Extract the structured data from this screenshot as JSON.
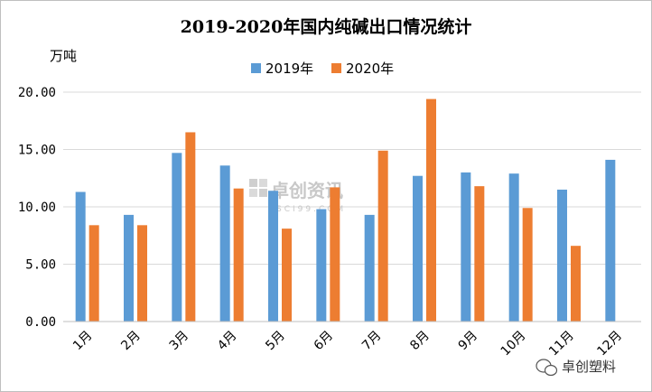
{
  "chart_data": {
    "type": "bar",
    "title": "2019-2020年国内纯碱出口情况统计",
    "ylabel": "万吨",
    "xlabel": "",
    "categories": [
      "1月",
      "2月",
      "3月",
      "4月",
      "5月",
      "6月",
      "7月",
      "8月",
      "9月",
      "10月",
      "11月",
      "12月"
    ],
    "series": [
      {
        "name": "2019年",
        "color": "#5b9bd5",
        "values": [
          11.3,
          9.3,
          14.7,
          13.6,
          11.4,
          9.8,
          9.3,
          12.7,
          13.0,
          12.9,
          11.5,
          14.1
        ]
      },
      {
        "name": "2020年",
        "color": "#ed7d31",
        "values": [
          8.4,
          8.4,
          16.5,
          11.6,
          8.1,
          11.7,
          14.9,
          19.4,
          11.8,
          9.9,
          6.6,
          null
        ]
      }
    ],
    "ylim": [
      0,
      20
    ],
    "yticks": [
      "0.00",
      "5.00",
      "10.00",
      "15.00",
      "20.00"
    ],
    "grid": true,
    "legend": "top-center"
  },
  "watermark": {
    "text": "卓创资讯",
    "sub": "SCI99.COM"
  },
  "brand_mark": {
    "text": "卓创塑料",
    "icon": "wechat-icon"
  }
}
